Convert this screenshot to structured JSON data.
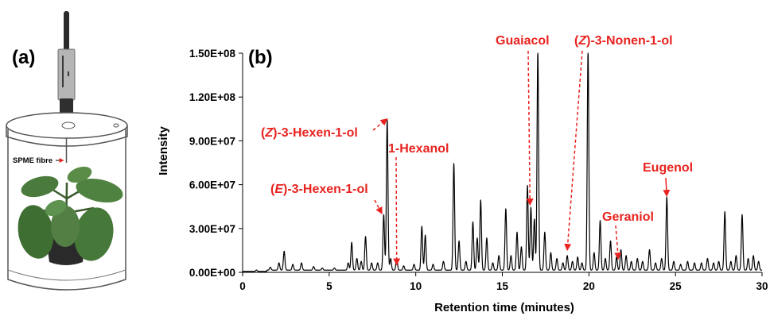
{
  "panel_a": {
    "label": "(a)",
    "fibre_label": "SPME fibre"
  },
  "panel_b": {
    "label": "(b)"
  },
  "colors": {
    "trace": "#000000",
    "annotation": "#e8231f",
    "leaf": "#4a7a3c",
    "pot": "#333333"
  },
  "chart_data": {
    "type": "line",
    "title": "",
    "xlabel": "Retention time (minutes)",
    "ylabel": "Intensity",
    "xlim": [
      0,
      30
    ],
    "ylim": [
      0,
      150000000
    ],
    "x_ticks": [
      0,
      5,
      10,
      15,
      20,
      25,
      30
    ],
    "x_tick_labels": [
      "0",
      "5",
      "10",
      "15",
      "20",
      "25",
      "30"
    ],
    "y_ticks": [
      0,
      30000000,
      60000000,
      90000000,
      120000000,
      150000000
    ],
    "y_tick_labels": [
      "0.00E+00",
      "3.00E+07",
      "6.00E+07",
      "9.00E+07",
      "1.20E+08",
      "1.50E+08"
    ],
    "baseline": 1500000,
    "peaks": [
      {
        "rt": 0.8,
        "h": 1000000
      },
      {
        "rt": 1.6,
        "h": 2000000
      },
      {
        "rt": 2.1,
        "h": 5000000
      },
      {
        "rt": 2.4,
        "h": 13000000
      },
      {
        "rt": 2.9,
        "h": 4000000
      },
      {
        "rt": 3.4,
        "h": 5000000
      },
      {
        "rt": 4.1,
        "h": 2500000
      },
      {
        "rt": 4.6,
        "h": 1500000
      },
      {
        "rt": 5.3,
        "h": 1500000
      },
      {
        "rt": 6.1,
        "h": 5000000
      },
      {
        "rt": 6.3,
        "h": 19000000
      },
      {
        "rt": 6.6,
        "h": 8000000
      },
      {
        "rt": 6.85,
        "h": 6000000
      },
      {
        "rt": 7.1,
        "h": 23000000
      },
      {
        "rt": 7.45,
        "h": 5000000
      },
      {
        "rt": 7.8,
        "h": 5000000
      },
      {
        "rt": 8.15,
        "h": 38000000
      },
      {
        "rt": 8.35,
        "h": 103000000
      },
      {
        "rt": 8.55,
        "h": 8000000
      },
      {
        "rt": 8.9,
        "h": 8000000
      },
      {
        "rt": 9.3,
        "h": 3000000
      },
      {
        "rt": 9.9,
        "h": 4000000
      },
      {
        "rt": 10.35,
        "h": 30000000
      },
      {
        "rt": 10.55,
        "h": 24000000
      },
      {
        "rt": 11.0,
        "h": 4000000
      },
      {
        "rt": 11.6,
        "h": 6000000
      },
      {
        "rt": 12.2,
        "h": 73000000
      },
      {
        "rt": 12.5,
        "h": 20000000
      },
      {
        "rt": 12.9,
        "h": 6000000
      },
      {
        "rt": 13.3,
        "h": 33000000
      },
      {
        "rt": 13.55,
        "h": 22000000
      },
      {
        "rt": 13.75,
        "h": 48000000
      },
      {
        "rt": 14.1,
        "h": 22000000
      },
      {
        "rt": 14.45,
        "h": 5000000
      },
      {
        "rt": 14.8,
        "h": 10000000
      },
      {
        "rt": 15.2,
        "h": 42000000
      },
      {
        "rt": 15.5,
        "h": 10000000
      },
      {
        "rt": 15.85,
        "h": 26000000
      },
      {
        "rt": 16.1,
        "h": 16000000
      },
      {
        "rt": 16.45,
        "h": 58000000
      },
      {
        "rt": 16.65,
        "h": 43000000
      },
      {
        "rt": 16.85,
        "h": 35000000
      },
      {
        "rt": 17.05,
        "h": 150000000
      },
      {
        "rt": 17.45,
        "h": 26000000
      },
      {
        "rt": 17.8,
        "h": 12000000
      },
      {
        "rt": 18.15,
        "h": 8000000
      },
      {
        "rt": 18.5,
        "h": 5000000
      },
      {
        "rt": 18.75,
        "h": 10000000
      },
      {
        "rt": 19.05,
        "h": 6000000
      },
      {
        "rt": 19.35,
        "h": 9000000
      },
      {
        "rt": 19.6,
        "h": 5000000
      },
      {
        "rt": 19.95,
        "h": 150000000
      },
      {
        "rt": 20.3,
        "h": 12000000
      },
      {
        "rt": 20.65,
        "h": 34000000
      },
      {
        "rt": 20.95,
        "h": 8000000
      },
      {
        "rt": 21.25,
        "h": 20000000
      },
      {
        "rt": 21.6,
        "h": 9000000
      },
      {
        "rt": 21.85,
        "h": 14000000
      },
      {
        "rt": 22.15,
        "h": 10000000
      },
      {
        "rt": 22.45,
        "h": 6000000
      },
      {
        "rt": 22.8,
        "h": 8000000
      },
      {
        "rt": 23.1,
        "h": 6000000
      },
      {
        "rt": 23.5,
        "h": 14000000
      },
      {
        "rt": 23.85,
        "h": 5000000
      },
      {
        "rt": 24.2,
        "h": 8000000
      },
      {
        "rt": 24.5,
        "h": 50000000
      },
      {
        "rt": 24.9,
        "h": 6000000
      },
      {
        "rt": 25.3,
        "h": 4000000
      },
      {
        "rt": 25.7,
        "h": 6000000
      },
      {
        "rt": 26.1,
        "h": 5000000
      },
      {
        "rt": 26.5,
        "h": 5000000
      },
      {
        "rt": 26.85,
        "h": 8000000
      },
      {
        "rt": 27.2,
        "h": 5000000
      },
      {
        "rt": 27.5,
        "h": 6000000
      },
      {
        "rt": 27.85,
        "h": 40000000
      },
      {
        "rt": 28.2,
        "h": 6000000
      },
      {
        "rt": 28.5,
        "h": 10000000
      },
      {
        "rt": 28.85,
        "h": 38000000
      },
      {
        "rt": 29.2,
        "h": 8000000
      },
      {
        "rt": 29.5,
        "h": 10000000
      },
      {
        "rt": 29.8,
        "h": 6000000
      }
    ],
    "annotations": [
      {
        "pre": "(",
        "italic": "Z",
        "post": ")-3-Hexen-1-ol",
        "target_rt": 8.35,
        "target_y": 104000000
      },
      {
        "pre": "(",
        "italic": "E",
        "post": ")-3-Hexen-1-ol",
        "target_rt": 8.05,
        "target_y": 39000000
      },
      {
        "pre": "",
        "italic": "",
        "post": "1-Hexanol",
        "target_rt": 8.9,
        "target_y": 4000000
      },
      {
        "pre": "",
        "italic": "",
        "post": "Guaiacol",
        "target_rt": 16.6,
        "target_y": 45000000
      },
      {
        "pre": "(",
        "italic": "Z",
        "post": ")-3-Nonen-1-ol",
        "target_rt": 18.75,
        "target_y": 14000000
      },
      {
        "pre": "",
        "italic": "",
        "post": "Geraniol",
        "target_rt": 21.7,
        "target_y": 8000000
      },
      {
        "pre": "",
        "italic": "",
        "post": "Eugenol",
        "target_rt": 24.5,
        "target_y": 51000000
      }
    ]
  }
}
